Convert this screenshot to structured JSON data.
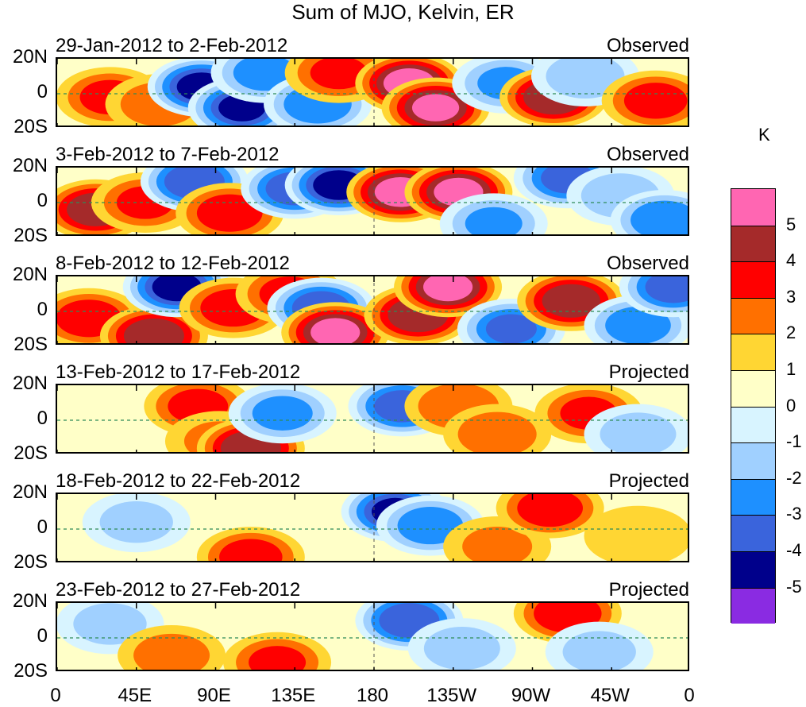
{
  "chart_data": {
    "type": "heatmap",
    "title": "Sum of MJO, Kelvin, ER",
    "unit": "K",
    "xlim": [
      0,
      360
    ],
    "ylim": [
      -20,
      20
    ],
    "x_ticks": [
      "0",
      "45E",
      "90E",
      "135E",
      "180",
      "135W",
      "90W",
      "45W",
      "0"
    ],
    "y_ticks": [
      "20N",
      "0",
      "20S"
    ],
    "colorbar": {
      "levels": [
        "5",
        "4",
        "3",
        "2",
        "1",
        "0",
        "-1",
        "-2",
        "-3",
        "-4",
        "-5"
      ],
      "colors": [
        "#ff66b2",
        "#a52a2a",
        "#ff0000",
        "#ff7000",
        "#ffd633",
        "#ffffc8",
        "#d8f4ff",
        "#a0d0ff",
        "#1e90ff",
        "#3a64dc",
        "#00008b",
        "#8a2be2"
      ]
    },
    "panels": [
      {
        "dates": "29-Jan-2012 to 2-Feb-2012",
        "kind": "Observed"
      },
      {
        "dates": "3-Feb-2012 to 7-Feb-2012",
        "kind": "Observed"
      },
      {
        "dates": "8-Feb-2012 to 12-Feb-2012",
        "kind": "Observed"
      },
      {
        "dates": "13-Feb-2012 to 17-Feb-2012",
        "kind": "Projected"
      },
      {
        "dates": "18-Feb-2012 to 22-Feb-2012",
        "kind": "Projected"
      },
      {
        "dates": "23-Feb-2012 to 27-Feb-2012",
        "kind": "Projected"
      }
    ],
    "anomalies": [
      [
        {
          "lon": 30,
          "lat": -2,
          "value": 3.2
        },
        {
          "lon": 58,
          "lat": -6,
          "value": 2.5
        },
        {
          "lon": 82,
          "lat": 4,
          "value": -5.2
        },
        {
          "lon": 105,
          "lat": -8,
          "value": -5.0
        },
        {
          "lon": 118,
          "lat": 12,
          "value": -3.4
        },
        {
          "lon": 148,
          "lat": -6,
          "value": -3.8
        },
        {
          "lon": 160,
          "lat": 12,
          "value": 3.0
        },
        {
          "lon": 200,
          "lat": 6,
          "value": 5.4
        },
        {
          "lon": 215,
          "lat": -8,
          "value": 5.0
        },
        {
          "lon": 255,
          "lat": 6,
          "value": -3.0
        },
        {
          "lon": 282,
          "lat": -2,
          "value": 4.8
        },
        {
          "lon": 300,
          "lat": 10,
          "value": -2.6
        },
        {
          "lon": 340,
          "lat": -4,
          "value": 3.4
        }
      ],
      [
        {
          "lon": 22,
          "lat": -4,
          "value": 4.6
        },
        {
          "lon": 50,
          "lat": 0,
          "value": 3.0
        },
        {
          "lon": 78,
          "lat": 12,
          "value": -4.8
        },
        {
          "lon": 98,
          "lat": -6,
          "value": 3.6
        },
        {
          "lon": 135,
          "lat": 8,
          "value": -4.6
        },
        {
          "lon": 160,
          "lat": 10,
          "value": -5.4
        },
        {
          "lon": 195,
          "lat": 6,
          "value": 5.4
        },
        {
          "lon": 228,
          "lat": 6,
          "value": 5.2
        },
        {
          "lon": 248,
          "lat": -12,
          "value": -3.0
        },
        {
          "lon": 290,
          "lat": 14,
          "value": -4.2
        },
        {
          "lon": 320,
          "lat": 4,
          "value": -2.6
        },
        {
          "lon": 345,
          "lat": -10,
          "value": -3.8
        }
      ],
      [
        {
          "lon": 18,
          "lat": -4,
          "value": 3.6
        },
        {
          "lon": 55,
          "lat": -14,
          "value": 4.8
        },
        {
          "lon": 68,
          "lat": 14,
          "value": -5.2
        },
        {
          "lon": 100,
          "lat": 2,
          "value": 3.6
        },
        {
          "lon": 132,
          "lat": 10,
          "value": 3.2
        },
        {
          "lon": 150,
          "lat": 2,
          "value": -4.6
        },
        {
          "lon": 158,
          "lat": -12,
          "value": 5.2
        },
        {
          "lon": 205,
          "lat": -2,
          "value": 4.8
        },
        {
          "lon": 222,
          "lat": 14,
          "value": 5.2
        },
        {
          "lon": 258,
          "lat": -10,
          "value": -4.0
        },
        {
          "lon": 292,
          "lat": 6,
          "value": 4.6
        },
        {
          "lon": 330,
          "lat": -8,
          "value": -3.6
        },
        {
          "lon": 350,
          "lat": 14,
          "value": -4.4
        }
      ],
      [
        {
          "lon": 80,
          "lat": 8,
          "value": 3.2
        },
        {
          "lon": 92,
          "lat": -12,
          "value": 2.0
        },
        {
          "lon": 110,
          "lat": -16,
          "value": 4.8
        },
        {
          "lon": 128,
          "lat": 4,
          "value": -3.2
        },
        {
          "lon": 196,
          "lat": 8,
          "value": -4.4
        },
        {
          "lon": 228,
          "lat": 8,
          "value": 2.8
        },
        {
          "lon": 250,
          "lat": -8,
          "value": 2.6
        },
        {
          "lon": 302,
          "lat": 4,
          "value": 3.0
        },
        {
          "lon": 330,
          "lat": -8,
          "value": -2.4
        }
      ],
      [
        {
          "lon": 45,
          "lat": 4,
          "value": -2.2
        },
        {
          "lon": 110,
          "lat": -16,
          "value": 3.4
        },
        {
          "lon": 192,
          "lat": 10,
          "value": -5.0
        },
        {
          "lon": 212,
          "lat": 2,
          "value": -3.6
        },
        {
          "lon": 250,
          "lat": -10,
          "value": 2.0
        },
        {
          "lon": 280,
          "lat": 12,
          "value": 3.6
        },
        {
          "lon": 330,
          "lat": -4,
          "value": 1.2
        }
      ],
      [
        {
          "lon": 30,
          "lat": 8,
          "value": -2.2
        },
        {
          "lon": 65,
          "lat": -10,
          "value": 2.4
        },
        {
          "lon": 125,
          "lat": -14,
          "value": 3.0
        },
        {
          "lon": 200,
          "lat": 10,
          "value": -4.8
        },
        {
          "lon": 230,
          "lat": -6,
          "value": -2.4
        },
        {
          "lon": 290,
          "lat": 14,
          "value": 3.8
        },
        {
          "lon": 308,
          "lat": -8,
          "value": -2.2
        }
      ]
    ]
  }
}
